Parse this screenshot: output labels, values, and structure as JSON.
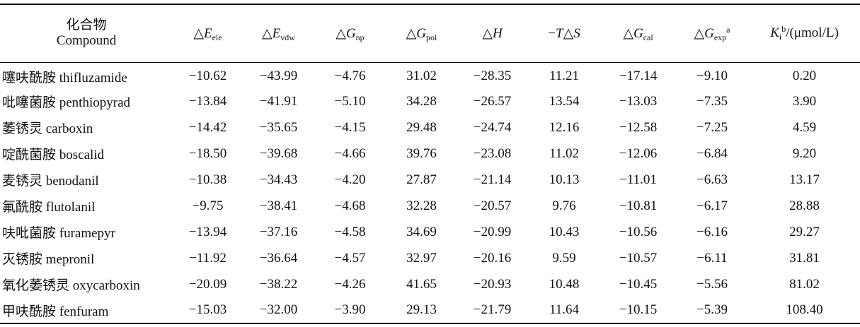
{
  "table": {
    "header": {
      "compound_zh": "化合物",
      "compound_en": "Compound",
      "columns": [
        {
          "delta": "△",
          "var": "E",
          "sub": "ele",
          "sup": ""
        },
        {
          "delta": "△",
          "var": "E",
          "sub": "vdw",
          "sup": ""
        },
        {
          "delta": "△",
          "var": "G",
          "sub": "np",
          "sup": ""
        },
        {
          "delta": "△",
          "var": "G",
          "sub": "pol",
          "sup": ""
        },
        {
          "delta": "△",
          "var": "H",
          "sub": "",
          "sup": ""
        },
        {
          "delta": "−",
          "var": "T",
          "sub": "",
          "sup": "",
          "tail": "△",
          "tail_var": "S"
        },
        {
          "delta": "△",
          "var": "G",
          "sub": "cal",
          "sup": ""
        },
        {
          "delta": "△",
          "var": "G",
          "sub": "exp",
          "sup": "a"
        },
        {
          "delta": "",
          "var": "K",
          "sub": "i",
          "sup": "b",
          "unit": "/(μmol/L)"
        }
      ]
    },
    "rows": [
      {
        "compound": "噻呋酰胺 thifluzamide",
        "values": [
          "−10.62",
          "−43.99",
          "−4.76",
          "31.02",
          "−28.35",
          "11.21",
          "−17.14",
          "−9.10",
          "0.20"
        ]
      },
      {
        "compound": "吡噻菌胺 penthiopyrad",
        "values": [
          "−13.84",
          "−41.91",
          "−5.10",
          "34.28",
          "−26.57",
          "13.54",
          "−13.03",
          "−7.35",
          "3.90"
        ]
      },
      {
        "compound": "萎锈灵 carboxin",
        "values": [
          "−14.42",
          "−35.65",
          "−4.15",
          "29.48",
          "−24.74",
          "12.16",
          "−12.58",
          "−7.25",
          "4.59"
        ]
      },
      {
        "compound": "啶酰菌胺 boscalid",
        "values": [
          "−18.50",
          "−39.68",
          "−4.66",
          "39.76",
          "−23.08",
          "11.02",
          "−12.06",
          "−6.84",
          "9.20"
        ]
      },
      {
        "compound": "麦锈灵 benodanil",
        "values": [
          "−10.38",
          "−34.43",
          "−4.20",
          "27.87",
          "−21.14",
          "10.13",
          "−11.01",
          "−6.63",
          "13.17"
        ]
      },
      {
        "compound": "氟酰胺 flutolanil",
        "values": [
          "−9.75",
          "−38.41",
          "−4.68",
          "32.28",
          "−20.57",
          "9.76",
          "−10.81",
          "−6.17",
          "28.88"
        ]
      },
      {
        "compound": "呋吡菌胺 furamepyr",
        "values": [
          "−13.94",
          "−37.16",
          "−4.58",
          "34.69",
          "−20.99",
          "10.43",
          "−10.56",
          "−6.16",
          "29.27"
        ]
      },
      {
        "compound": "灭锈胺 mepronil",
        "values": [
          "−11.92",
          "−36.64",
          "−4.57",
          "32.97",
          "−20.16",
          "9.59",
          "−10.57",
          "−6.11",
          "31.81"
        ]
      },
      {
        "compound": "氧化萎锈灵 oxycarboxin",
        "values": [
          "−20.09",
          "−38.22",
          "−4.26",
          "41.65",
          "−20.93",
          "10.48",
          "−10.45",
          "−5.56",
          "81.02"
        ]
      },
      {
        "compound": "甲呋酰胺 fenfuram",
        "values": [
          "−15.03",
          "−32.00",
          "−3.90",
          "29.13",
          "−21.79",
          "11.64",
          "−10.15",
          "−5.39",
          "108.40"
        ]
      }
    ]
  }
}
